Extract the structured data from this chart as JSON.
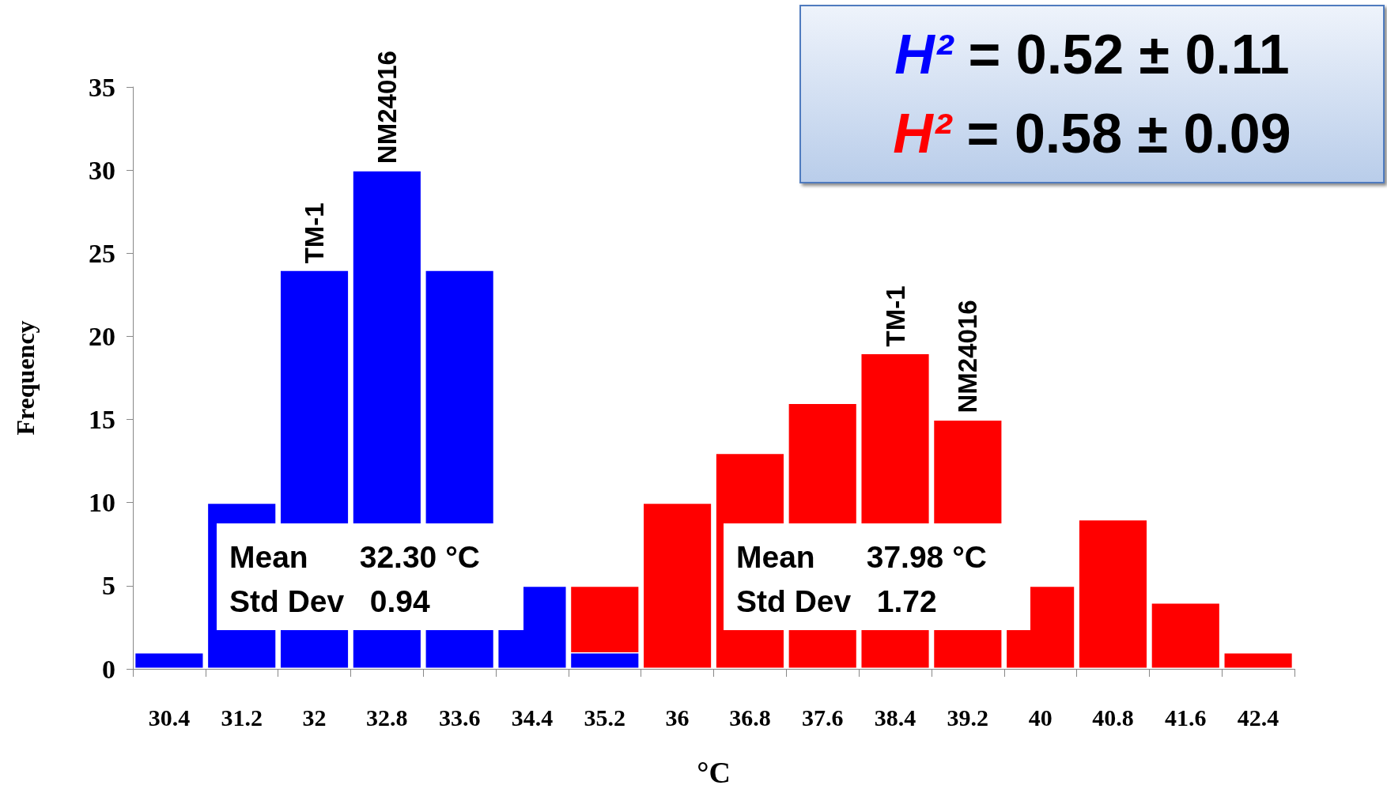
{
  "chart_data": {
    "type": "bar",
    "xlabel": "°C",
    "ylabel": "Frequency",
    "categories": [
      "30.4",
      "31.2",
      "32",
      "32.8",
      "33.6",
      "34.4",
      "35.2",
      "36",
      "36.8",
      "37.6",
      "38.4",
      "39.2",
      "40",
      "40.8",
      "41.6",
      "42.4"
    ],
    "series": [
      {
        "color": "#0000ff",
        "values": [
          1,
          10,
          24,
          30,
          24,
          5,
          1,
          0,
          0,
          0,
          0,
          0,
          0,
          0,
          0,
          0
        ]
      },
      {
        "color": "#ff0000",
        "values": [
          0,
          0,
          0,
          0,
          0,
          0,
          5,
          10,
          13,
          16,
          19,
          15,
          5,
          9,
          4,
          1
        ]
      }
    ],
    "ylim": [
      0,
      35
    ],
    "yticks": [
      0,
      5,
      10,
      15,
      20,
      25,
      30,
      35
    ],
    "grid": false,
    "annotations": [
      "H² = 0.52 ± 0.11",
      "H² = 0.58 ± 0.09",
      "Mean      32.30 °C\nStd Dev   0.94",
      "Mean      37.98 °C\nStd Dev   1.72",
      {
        "text": "TM-1",
        "x": "32",
        "y": 24
      },
      {
        "text": "NM24016",
        "x": "32.8",
        "y": 30
      },
      {
        "text": "TM-1",
        "x": "38.4",
        "y": 19
      },
      {
        "text": "NM24016",
        "x": "39.2",
        "y": 15
      }
    ]
  }
}
